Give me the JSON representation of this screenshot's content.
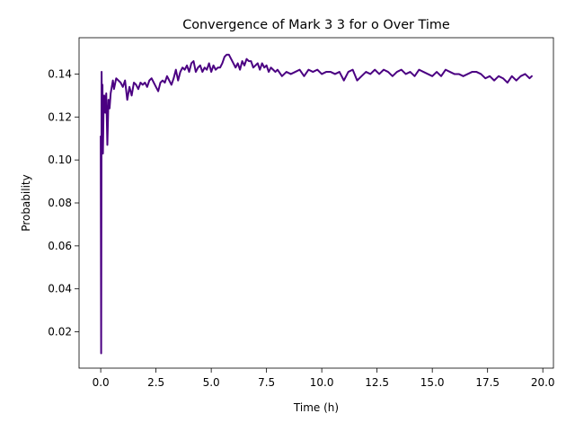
{
  "chart_data": {
    "type": "line",
    "title": "Convergence of Mark 3 3 for o Over Time",
    "xlabel": "Time (h)",
    "ylabel": "Probability",
    "xlim": [
      -0.98,
      20.48
    ],
    "ylim": [
      0.0031,
      0.1569
    ],
    "xticks": [
      0.0,
      2.5,
      5.0,
      7.5,
      10.0,
      12.5,
      15.0,
      17.5,
      20.0
    ],
    "xtick_labels": [
      "0.0",
      "2.5",
      "5.0",
      "7.5",
      "10.0",
      "12.5",
      "15.0",
      "17.5",
      "20.0"
    ],
    "yticks": [
      0.02,
      0.04,
      0.06,
      0.08,
      0.1,
      0.12,
      0.14
    ],
    "ytick_labels": [
      "0.02",
      "0.04",
      "0.06",
      "0.08",
      "0.10",
      "0.12",
      "0.14"
    ],
    "grid": false,
    "line_color": "#4b0082",
    "series": [
      {
        "x": [
          0.0,
          0.02,
          0.04,
          0.06,
          0.08,
          0.1,
          0.13,
          0.16,
          0.2,
          0.25,
          0.3,
          0.35,
          0.4,
          0.45,
          0.5,
          0.55,
          0.6,
          0.7,
          0.8,
          0.9,
          1.0,
          1.1,
          1.2,
          1.3,
          1.4,
          1.5,
          1.6,
          1.7,
          1.8,
          1.9,
          2.0,
          2.1,
          2.2,
          2.3,
          2.4,
          2.5,
          2.6,
          2.7,
          2.8,
          2.9,
          3.0,
          3.1,
          3.2,
          3.3,
          3.4,
          3.5,
          3.6,
          3.7,
          3.8,
          3.9,
          4.0,
          4.1,
          4.2,
          4.3,
          4.4,
          4.5,
          4.6,
          4.7,
          4.8,
          4.9,
          5.0,
          5.1,
          5.2,
          5.3,
          5.4,
          5.5,
          5.6,
          5.7,
          5.8,
          5.9,
          6.0,
          6.1,
          6.2,
          6.3,
          6.4,
          6.5,
          6.6,
          6.7,
          6.8,
          6.9,
          7.0,
          7.1,
          7.2,
          7.3,
          7.4,
          7.5,
          7.6,
          7.7,
          7.8,
          7.9,
          8.0,
          8.2,
          8.4,
          8.6,
          8.8,
          9.0,
          9.2,
          9.4,
          9.6,
          9.8,
          10.0,
          10.2,
          10.4,
          10.6,
          10.8,
          11.0,
          11.2,
          11.4,
          11.6,
          11.8,
          12.0,
          12.2,
          12.4,
          12.6,
          12.8,
          13.0,
          13.2,
          13.4,
          13.6,
          13.8,
          14.0,
          14.2,
          14.4,
          14.6,
          14.8,
          15.0,
          15.2,
          15.4,
          15.6,
          15.8,
          16.0,
          16.2,
          16.4,
          16.6,
          16.8,
          17.0,
          17.2,
          17.4,
          17.6,
          17.8,
          18.0,
          18.2,
          18.4,
          18.6,
          18.8,
          19.0,
          19.2,
          19.4,
          19.5
        ],
        "y": [
          0.111,
          0.01,
          0.141,
          0.112,
          0.135,
          0.103,
          0.125,
          0.13,
          0.122,
          0.131,
          0.107,
          0.128,
          0.124,
          0.131,
          0.134,
          0.137,
          0.133,
          0.138,
          0.137,
          0.136,
          0.134,
          0.137,
          0.128,
          0.134,
          0.13,
          0.136,
          0.135,
          0.133,
          0.136,
          0.135,
          0.136,
          0.134,
          0.137,
          0.138,
          0.136,
          0.134,
          0.132,
          0.136,
          0.137,
          0.136,
          0.139,
          0.137,
          0.135,
          0.138,
          0.142,
          0.137,
          0.141,
          0.143,
          0.142,
          0.144,
          0.141,
          0.145,
          0.146,
          0.141,
          0.143,
          0.144,
          0.141,
          0.143,
          0.142,
          0.145,
          0.141,
          0.144,
          0.142,
          0.143,
          0.143,
          0.145,
          0.148,
          0.149,
          0.149,
          0.147,
          0.145,
          0.143,
          0.145,
          0.142,
          0.146,
          0.144,
          0.147,
          0.146,
          0.146,
          0.143,
          0.144,
          0.145,
          0.142,
          0.145,
          0.143,
          0.144,
          0.141,
          0.143,
          0.142,
          0.141,
          0.142,
          0.139,
          0.141,
          0.14,
          0.141,
          0.142,
          0.139,
          0.142,
          0.141,
          0.142,
          0.14,
          0.141,
          0.141,
          0.14,
          0.141,
          0.137,
          0.141,
          0.142,
          0.137,
          0.139,
          0.141,
          0.14,
          0.142,
          0.14,
          0.142,
          0.141,
          0.139,
          0.141,
          0.142,
          0.14,
          0.141,
          0.139,
          0.142,
          0.141,
          0.14,
          0.139,
          0.141,
          0.139,
          0.142,
          0.141,
          0.14,
          0.14,
          0.139,
          0.14,
          0.141,
          0.141,
          0.14,
          0.138,
          0.139,
          0.137,
          0.139,
          0.138,
          0.136,
          0.139,
          0.137,
          0.139,
          0.14,
          0.138,
          0.139
        ]
      }
    ]
  }
}
